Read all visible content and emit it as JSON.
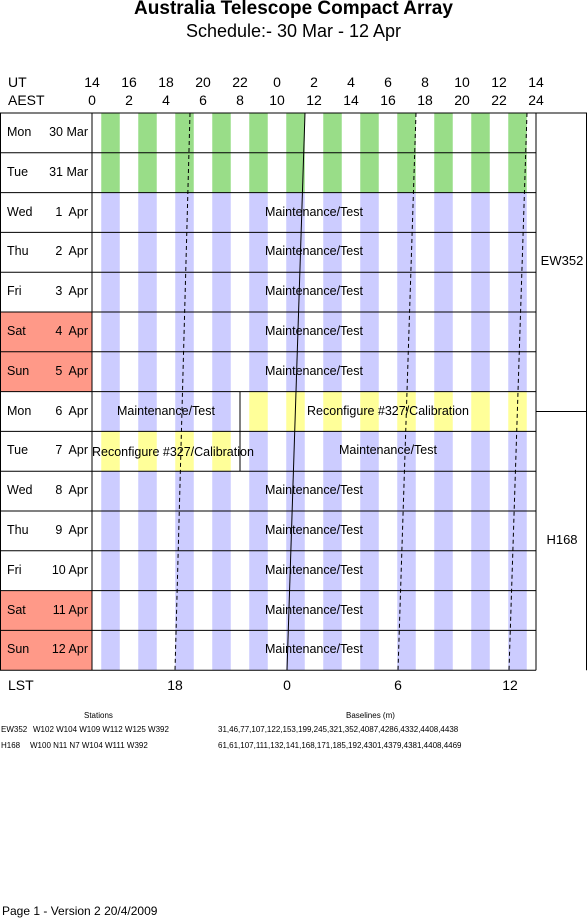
{
  "title": "Australia Telescope Compact Array",
  "subtitle": "Schedule:- 30 Mar - 12 Apr",
  "axis": {
    "ut_label": "UT",
    "aest_label": "AEST",
    "ut_ticks": [
      "14",
      "16",
      "18",
      "20",
      "22",
      "0",
      "2",
      "4",
      "6",
      "8",
      "10",
      "12",
      "14"
    ],
    "aest_ticks": [
      "0",
      "2",
      "4",
      "6",
      "8",
      "10",
      "12",
      "14",
      "16",
      "18",
      "20",
      "22",
      "24"
    ],
    "lst_label": "LST",
    "lst_ticks": [
      {
        "label": "18",
        "hour": 18
      },
      {
        "label": "0",
        "hour": 0
      },
      {
        "label": "6",
        "hour": 6
      },
      {
        "label": "12",
        "hour": 12
      }
    ]
  },
  "days": [
    {
      "dow": "Mon",
      "date": "30 Mar",
      "weekend": false
    },
    {
      "dow": "Tue",
      "date": "31 Mar",
      "weekend": false
    },
    {
      "dow": "Wed",
      "date": "1  Apr",
      "weekend": false
    },
    {
      "dow": "Thu",
      "date": "2  Apr",
      "weekend": false
    },
    {
      "dow": "Fri",
      "date": "3  Apr",
      "weekend": false
    },
    {
      "dow": "Sat",
      "date": "4  Apr",
      "weekend": true
    },
    {
      "dow": "Sun",
      "date": "5  Apr",
      "weekend": true
    },
    {
      "dow": "Mon",
      "date": "6  Apr",
      "weekend": false
    },
    {
      "dow": "Tue",
      "date": "7  Apr",
      "weekend": false
    },
    {
      "dow": "Wed",
      "date": "8  Apr",
      "weekend": false
    },
    {
      "dow": "Thu",
      "date": "9  Apr",
      "weekend": false
    },
    {
      "dow": "Fri",
      "date": "10 Apr",
      "weekend": false
    },
    {
      "dow": "Sat",
      "date": "11 Apr",
      "weekend": true
    },
    {
      "dow": "Sun",
      "date": "12 Apr",
      "weekend": true
    }
  ],
  "schedule": [
    {
      "day": 0,
      "segments": [
        {
          "start": 0,
          "end": 24,
          "type": "green",
          "label": ""
        }
      ]
    },
    {
      "day": 1,
      "segments": [
        {
          "start": 0,
          "end": 24,
          "type": "green",
          "label": ""
        }
      ]
    },
    {
      "day": 2,
      "segments": [
        {
          "start": 0,
          "end": 24,
          "type": "blue",
          "label": "Maintenance/Test"
        }
      ]
    },
    {
      "day": 3,
      "segments": [
        {
          "start": 0,
          "end": 24,
          "type": "blue",
          "label": "Maintenance/Test"
        }
      ]
    },
    {
      "day": 4,
      "segments": [
        {
          "start": 0,
          "end": 24,
          "type": "blue",
          "label": "Maintenance/Test"
        }
      ]
    },
    {
      "day": 5,
      "segments": [
        {
          "start": 0,
          "end": 24,
          "type": "blue",
          "label": "Maintenance/Test"
        }
      ]
    },
    {
      "day": 6,
      "segments": [
        {
          "start": 0,
          "end": 24,
          "type": "blue",
          "label": "Maintenance/Test"
        }
      ]
    },
    {
      "day": 7,
      "segments": [
        {
          "start": 0,
          "end": 8,
          "type": "blue",
          "label": "Maintenance/Test"
        },
        {
          "start": 8,
          "end": 24,
          "type": "yellow",
          "label": "Reconfigure #327/Calibration"
        }
      ]
    },
    {
      "day": 8,
      "segments": [
        {
          "start": 0,
          "end": 8,
          "type": "yellow",
          "label": "Reconfigure #327/Calibration"
        },
        {
          "start": 8,
          "end": 24,
          "type": "blue",
          "label": "Maintenance/Test"
        }
      ]
    },
    {
      "day": 9,
      "segments": [
        {
          "start": 0,
          "end": 24,
          "type": "blue",
          "label": "Maintenance/Test"
        }
      ]
    },
    {
      "day": 10,
      "segments": [
        {
          "start": 0,
          "end": 24,
          "type": "blue",
          "label": "Maintenance/Test"
        }
      ]
    },
    {
      "day": 11,
      "segments": [
        {
          "start": 0,
          "end": 24,
          "type": "blue",
          "label": "Maintenance/Test"
        }
      ]
    },
    {
      "day": 12,
      "segments": [
        {
          "start": 0,
          "end": 24,
          "type": "blue",
          "label": "Maintenance/Test"
        }
      ]
    },
    {
      "day": 13,
      "segments": [
        {
          "start": 0,
          "end": 24,
          "type": "blue",
          "label": "Maintenance/Test"
        }
      ]
    }
  ],
  "configs": [
    {
      "name": "EW352",
      "start_day": 0,
      "end_day": 7.5
    },
    {
      "name": "H168",
      "start_day": 7.5,
      "end_day": 14
    }
  ],
  "stations_header": "Stations",
  "baselines_header": "Baselines (m)",
  "array_table": [
    {
      "name": "EW352",
      "stations": "W102 W104 W109 W112 W125 W392",
      "baselines": "31,46,77,107,122,153,199,245,321,352,4087,4286,4332,4408,4438"
    },
    {
      "name": "H168",
      "stations": "W100 N11 N7 W104 W111 W392",
      "baselines": "61,61,107,111,132,141,168,171,185,192,4301,4379,4381,4408,4469"
    }
  ],
  "footer": "Page 1 - Version 2  20/4/2009",
  "colors": {
    "green": "#99dd88",
    "blue": "#ccccff",
    "yellow": "#ffff99",
    "weekend": "#ff9988"
  }
}
